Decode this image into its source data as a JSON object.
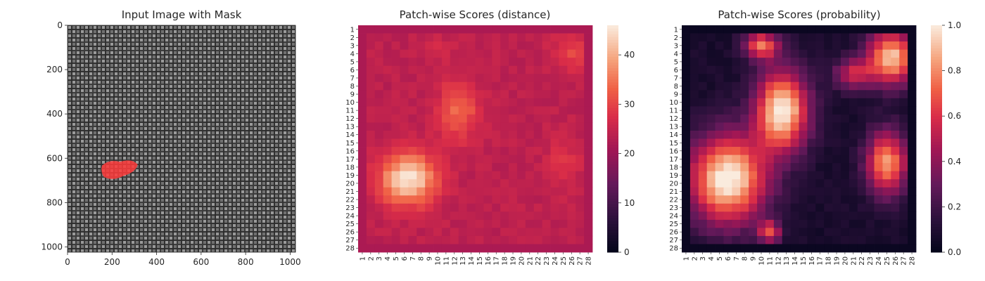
{
  "figure": {
    "background": "#ffffff"
  },
  "chart_data": [
    {
      "type": "image",
      "title": "Input Image with Mask",
      "xlim": [
        0,
        1024
      ],
      "ylim": [
        1024,
        0
      ],
      "x_ticks": [
        0,
        200,
        400,
        600,
        800,
        1000
      ],
      "y_ticks": [
        0,
        200,
        400,
        600,
        800,
        1000
      ],
      "mask": {
        "center": [
          235,
          650
        ],
        "width": 160,
        "height": 85,
        "color": "#ff3b3b"
      },
      "image_colors": {
        "base": "#4a4a4a",
        "highlight": "#b0b0b0",
        "shadow": "#2a2a2a"
      }
    },
    {
      "type": "heatmap",
      "title": "Patch-wise Scores (distance)",
      "rows": [
        "1",
        "2",
        "3",
        "4",
        "5",
        "6",
        "7",
        "8",
        "9",
        "10",
        "11",
        "12",
        "13",
        "14",
        "15",
        "16",
        "17",
        "18",
        "19",
        "20",
        "21",
        "22",
        "23",
        "24",
        "25",
        "26",
        "27",
        "28"
      ],
      "cols": [
        "1",
        "2",
        "3",
        "4",
        "5",
        "6",
        "7",
        "8",
        "9",
        "10",
        "11",
        "12",
        "13",
        "14",
        "15",
        "16",
        "17",
        "18",
        "19",
        "20",
        "21",
        "22",
        "23",
        "24",
        "25",
        "26",
        "27",
        "28"
      ],
      "colorbar": {
        "min": 0,
        "max": 46,
        "ticks": [
          0,
          10,
          20,
          30,
          40
        ]
      },
      "colormap": "rocket",
      "base": 24,
      "border_value": 22,
      "peaks": [
        {
          "row": 19.5,
          "col": 6.5,
          "rx": 2.6,
          "ry": 2.4,
          "amp": 21
        },
        {
          "row": 11.0,
          "col": 12.5,
          "rx": 1.8,
          "ry": 2.8,
          "amp": 10
        },
        {
          "row": 4.0,
          "col": 26.0,
          "rx": 1.8,
          "ry": 1.8,
          "amp": 6
        },
        {
          "row": 17.5,
          "col": 25.0,
          "rx": 1.6,
          "ry": 2.4,
          "amp": 4
        },
        {
          "row": 3.5,
          "col": 9.5,
          "rx": 1.5,
          "ry": 1.0,
          "amp": 3
        }
      ]
    },
    {
      "type": "heatmap",
      "title": "Patch-wise Scores (probability)",
      "rows": [
        "1",
        "2",
        "3",
        "4",
        "5",
        "6",
        "7",
        "8",
        "9",
        "10",
        "11",
        "12",
        "13",
        "14",
        "15",
        "16",
        "17",
        "18",
        "19",
        "20",
        "21",
        "22",
        "23",
        "24",
        "25",
        "26",
        "27",
        "28"
      ],
      "cols": [
        "1",
        "2",
        "3",
        "4",
        "5",
        "6",
        "7",
        "8",
        "9",
        "10",
        "11",
        "12",
        "13",
        "14",
        "15",
        "16",
        "17",
        "18",
        "19",
        "20",
        "21",
        "22",
        "23",
        "24",
        "25",
        "26",
        "27",
        "28"
      ],
      "colorbar": {
        "min": 0,
        "max": 1,
        "ticks": [
          "0.0",
          "0.2",
          "0.4",
          "0.6",
          "0.8",
          "1.0"
        ]
      },
      "colormap": "rocket",
      "base": 0.08,
      "border_value": 0.03,
      "peaks": [
        {
          "row": 19.5,
          "col": 6.0,
          "rx": 3.6,
          "ry": 4.2,
          "amp": 0.95
        },
        {
          "row": 11.0,
          "col": 12.5,
          "rx": 2.4,
          "ry": 3.8,
          "amp": 0.95
        },
        {
          "row": 4.5,
          "col": 25.5,
          "rx": 2.2,
          "ry": 2.6,
          "amp": 0.85
        },
        {
          "row": 17.5,
          "col": 25.0,
          "rx": 1.9,
          "ry": 3.0,
          "amp": 0.75
        },
        {
          "row": 3.0,
          "col": 10.0,
          "rx": 1.6,
          "ry": 1.3,
          "amp": 0.65
        },
        {
          "row": 6.5,
          "col": 21.0,
          "rx": 1.8,
          "ry": 1.5,
          "amp": 0.45
        },
        {
          "row": 26.0,
          "col": 11.0,
          "rx": 1.0,
          "ry": 1.0,
          "amp": 0.55
        }
      ]
    }
  ]
}
